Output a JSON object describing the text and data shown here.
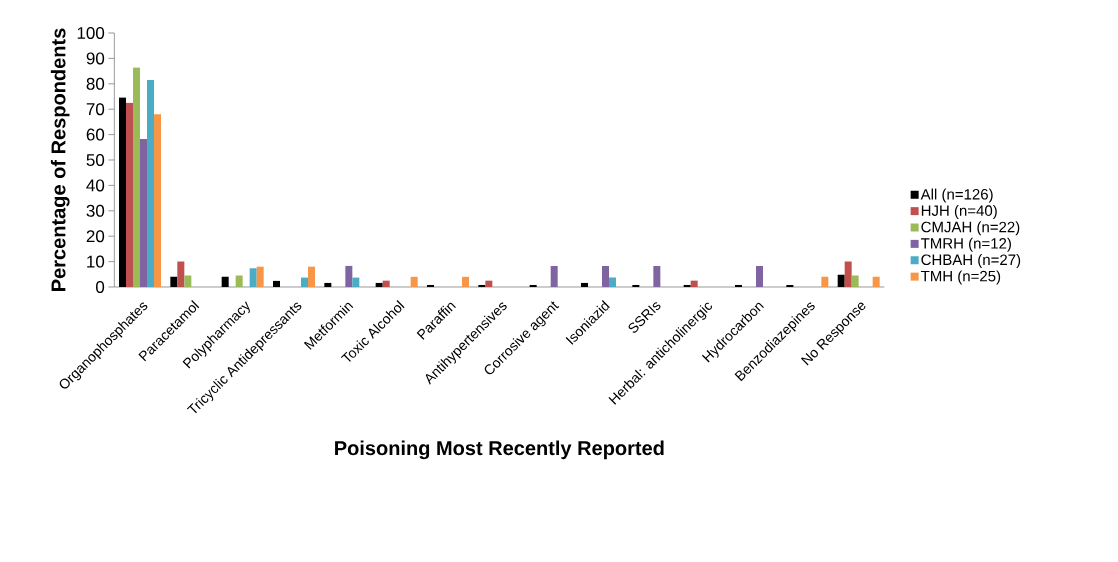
{
  "chart_data": {
    "type": "bar",
    "xlabel": "Poisoning  Most  Recently Reported",
    "ylabel": "Percentage of Respondents",
    "categories": [
      "Organophosphates",
      "Paracetamol",
      "Polypharmacy",
      "Tricyclic Antidepressants",
      "Metformin",
      "Toxic Alcohol",
      "Paraffin",
      "Antihypertensives",
      "Corrosive agent",
      "Isoniazid",
      "SSRIs",
      "Herbal: anticholinergic",
      "Hydrocarbon",
      "Benzodiazepines",
      "No Response"
    ],
    "series": [
      {
        "name": "All (n=126)",
        "color": "#000000",
        "values": [
          74.6,
          4,
          4,
          2.4,
          1.6,
          1.6,
          0.8,
          0.8,
          0.8,
          1.6,
          0.8,
          0.8,
          0.8,
          0.8,
          4.8
        ]
      },
      {
        "name": "HJH (n=40)",
        "color": "#c0504d",
        "values": [
          72.5,
          10,
          null,
          null,
          null,
          2.5,
          null,
          2.5,
          null,
          null,
          null,
          2.5,
          null,
          null,
          10
        ]
      },
      {
        "name": "CMJAH (n=22)",
        "color": "#9bbb59",
        "values": [
          86.4,
          4.5,
          4.5,
          null,
          null,
          null,
          null,
          null,
          null,
          null,
          null,
          null,
          null,
          null,
          4.5
        ]
      },
      {
        "name": "TMRH (n=12)",
        "color": "#8064a2",
        "values": [
          58.3,
          null,
          null,
          null,
          8.3,
          null,
          null,
          null,
          8.3,
          8.3,
          8.3,
          null,
          8.3,
          null,
          null
        ]
      },
      {
        "name": "CHBAH (n=27)",
        "color": "#4bacc6",
        "values": [
          81.5,
          null,
          7.4,
          3.7,
          3.7,
          null,
          null,
          null,
          null,
          3.7,
          null,
          null,
          null,
          null,
          null
        ]
      },
      {
        "name": "TMH (n=25)",
        "color": "#f79646",
        "values": [
          68,
          null,
          8,
          8,
          null,
          4,
          4,
          null,
          null,
          null,
          null,
          null,
          null,
          4,
          4
        ]
      }
    ],
    "ylim": [
      0,
      100
    ],
    "yticks": [
      0,
      10,
      20,
      30,
      40,
      50,
      60,
      70,
      80,
      90,
      100
    ],
    "grid": false,
    "legend": "right"
  }
}
